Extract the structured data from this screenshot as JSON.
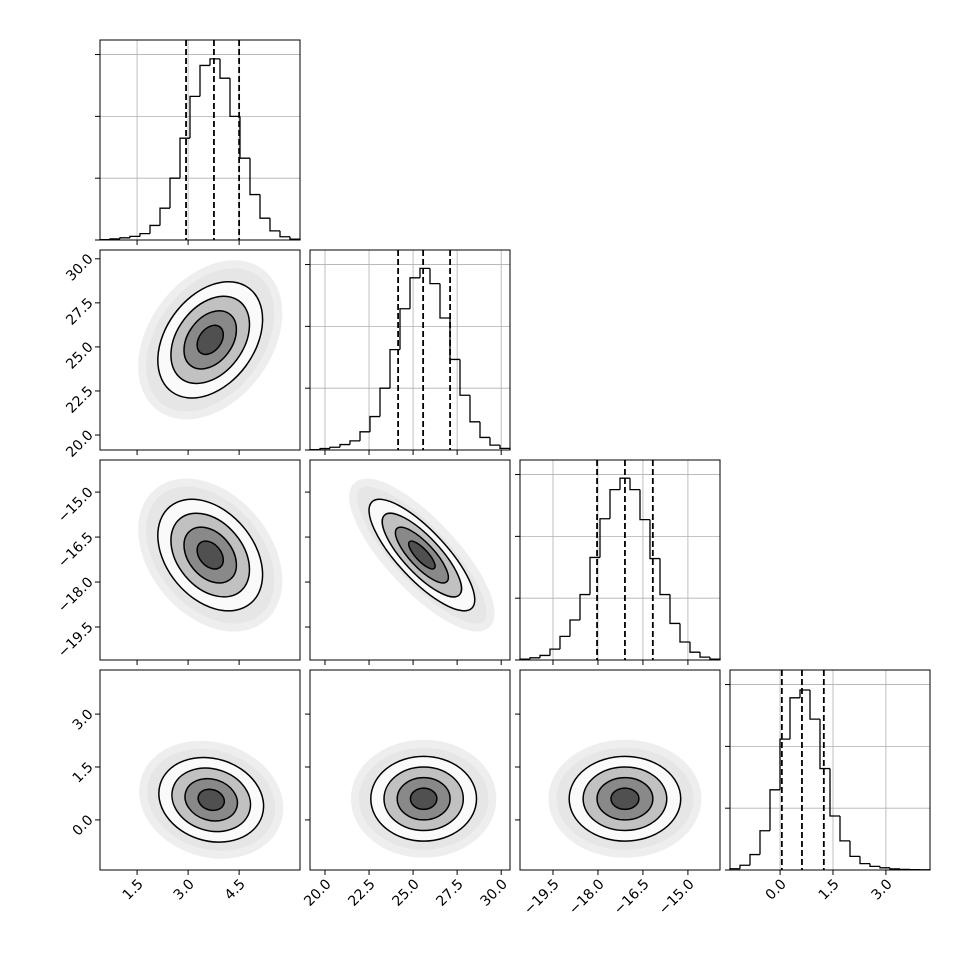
{
  "chart_data": {
    "type": "corner",
    "axes": [
      {
        "lim": [
          0.41,
          6.29
        ],
        "ticks": [
          1.5,
          {
            "value": 3,
            "label": "3.0"
          },
          4.5
        ]
      },
      {
        "lim": [
          19.15,
          30.5
        ],
        "ticks": [
          {
            "value": 20,
            "label": "20.0"
          },
          22.5,
          {
            "value": 25,
            "label": "25.0"
          },
          27.5,
          {
            "value": 30,
            "label": "30.0"
          }
        ]
      },
      {
        "lim": [
          -20.6,
          -13.93
        ],
        "ticks": [
          {
            "value": -19.5,
            "label": "−19.5"
          },
          {
            "value": -18,
            "label": "−18.0"
          },
          {
            "value": -16.5,
            "label": "−16.5"
          },
          {
            "value": -15,
            "label": "−15.0"
          }
        ]
      },
      {
        "lim": [
          -1.42,
          4.25
        ],
        "ticks": [
          {
            "value": 0,
            "label": "0.0"
          },
          1.5,
          {
            "value": 3,
            "label": "3.0"
          }
        ]
      }
    ],
    "histograms": [
      {
        "axis": 0,
        "ylim": [
          0,
          1100
        ],
        "yticks": [
          0,
          340,
          680,
          1020
        ],
        "quantiles": [
          2.94,
          3.76,
          4.5
        ],
        "bins": [
          0.41,
          0.704,
          0.998,
          1.292,
          1.586,
          1.88,
          2.174,
          2.468,
          2.762,
          3.056,
          3.35,
          3.644,
          3.938,
          4.232,
          4.526,
          4.82,
          5.114,
          5.408,
          5.702,
          5.996,
          6.29
        ],
        "counts": [
          2,
          6,
          12,
          20,
          35,
          80,
          175,
          340,
          560,
          790,
          960,
          996,
          890,
          680,
          450,
          250,
          120,
          50,
          18,
          5
        ]
      },
      {
        "axis": 1,
        "ylim": [
          0,
          1100
        ],
        "yticks": [
          0,
          340,
          680,
          1020
        ],
        "quantiles": [
          24.15,
          25.57,
          27.1
        ],
        "bins": [
          19.15,
          19.7175,
          20.285,
          20.8525,
          21.42,
          21.9875,
          22.555,
          23.1225,
          23.69,
          24.2575,
          24.825,
          25.3925,
          25.96,
          26.5275,
          27.095,
          27.6625,
          28.23,
          28.7975,
          29.365,
          29.9325,
          30.5
        ],
        "counts": [
          2,
          8,
          15,
          30,
          50,
          100,
          184,
          340,
          552,
          777,
          947,
          999,
          915,
          726,
          498,
          301,
          155,
          69,
          27,
          9
        ]
      },
      {
        "axis": 2,
        "ylim": [
          0,
          1100
        ],
        "yticks": [
          0,
          340,
          680,
          1020
        ],
        "quantiles": [
          -18.03,
          -17.1,
          -16.17
        ],
        "bins": [
          -20.6,
          -20.2665,
          -19.933,
          -19.5995,
          -19.266,
          -18.9325,
          -18.599,
          -18.2655,
          -17.932,
          -17.5985,
          -17.265,
          -16.9315,
          -16.598,
          -16.2645,
          -15.931,
          -15.5975,
          -15.264,
          -14.9305,
          -14.597,
          -14.2635,
          -13.93
        ],
        "counts": [
          5,
          12,
          25,
          60,
          130,
          220,
          360,
          564,
          777,
          937,
          1000,
          937,
          772,
          558,
          360,
          201,
          99,
          43,
          16,
          5
        ]
      },
      {
        "axis": 3,
        "ylim": [
          0,
          1100
        ],
        "yticks": [
          0,
          340,
          680,
          1020
        ],
        "quantiles": [
          0.05,
          0.62,
          1.24
        ],
        "bins": [
          -1.42,
          -1.1365,
          -0.853,
          -0.5695,
          -0.286,
          -0.0025,
          0.281,
          0.5645,
          0.848,
          1.1315,
          1.415,
          1.6985,
          1.982,
          2.2655,
          2.549,
          2.8325,
          3.116,
          3.3995,
          3.683,
          3.9665,
          4.25
        ],
        "counts": [
          7,
          26,
          85,
          216,
          441,
          720,
          947,
          990,
          830,
          558,
          297,
          160,
          75,
          35,
          20,
          12,
          6,
          3,
          2,
          1
        ]
      }
    ],
    "contours": [
      {
        "x_axis": 0,
        "y_axis": 1,
        "x_mean": 3.65,
        "y_mean": 25.4,
        "x_sd": 0.77,
        "y_sd": 1.65,
        "rho": 0.35
      },
      {
        "x_axis": 0,
        "y_axis": 2,
        "x_mean": 3.65,
        "y_mean": -17.1,
        "x_sd": 0.77,
        "y_sd": 0.93,
        "rho": -0.35
      },
      {
        "x_axis": 1,
        "y_axis": 2,
        "x_mean": 25.5,
        "y_mean": -17.1,
        "x_sd": 1.5,
        "y_sd": 0.93,
        "rho": -0.8
      },
      {
        "x_axis": 0,
        "y_axis": 3,
        "x_mean": 3.68,
        "y_mean": 0.57,
        "x_sd": 0.77,
        "y_sd": 0.6,
        "rho": -0.15
      },
      {
        "x_axis": 1,
        "y_axis": 3,
        "x_mean": 25.6,
        "y_mean": 0.6,
        "x_sd": 1.5,
        "y_sd": 0.6,
        "rho": 0
      },
      {
        "x_axis": 2,
        "y_axis": 3,
        "x_mean": -17.1,
        "y_mean": 0.6,
        "x_sd": 0.93,
        "y_sd": 0.6,
        "rho": 0
      }
    ],
    "levels": [
      0.5,
      1,
      1.5,
      2
    ]
  }
}
